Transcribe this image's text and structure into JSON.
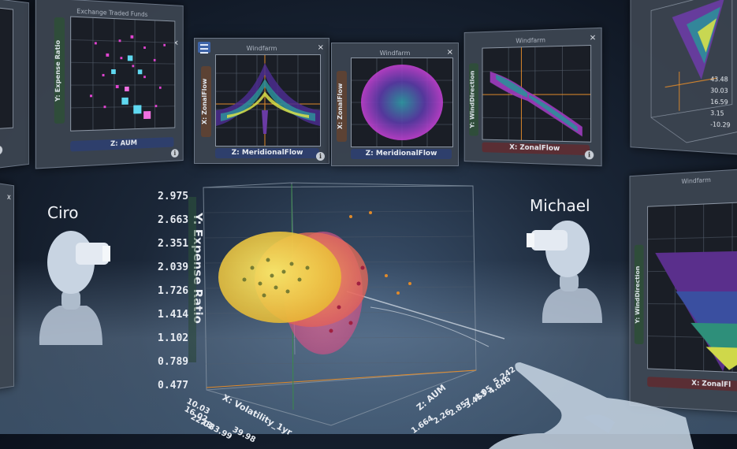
{
  "panels": [
    {
      "title": "",
      "close": "",
      "xlabel": "",
      "ylabel": "",
      "info": "i"
    },
    {
      "title": "Exchange Traded Funds",
      "close": "×",
      "xlabel": "Z: AUM",
      "ylabel": "Y: Expense Ratio",
      "info": "i"
    },
    {
      "title": "Windfarm",
      "close": "×",
      "xlabel": "Z: MeridionalFlow",
      "ylabel": "X: ZonalFlow",
      "info": "i"
    },
    {
      "title": "Windfarm",
      "close": "×",
      "xlabel": "Z: MeridionalFlow",
      "ylabel": "X: ZonalFlow",
      "info": "i"
    },
    {
      "title": "Windfarm",
      "close": "×",
      "xlabel": "X: ZonalFlow",
      "ylabel": "Y: WindDirection",
      "info": "i"
    },
    {
      "title": "Windfarm",
      "close": "",
      "xlabel": "X: ZonalFl",
      "ylabel": "Y: WindDirection",
      "info": ""
    },
    {
      "title": "",
      "close": "x",
      "xlabel": "",
      "ylabel": "",
      "info": ""
    }
  ],
  "corner_panel_ticks": [
    "43.48",
    "30.03",
    "16.59",
    "3.15",
    "-10.29"
  ],
  "avatars": {
    "left": "Ciro",
    "right": "Michael"
  },
  "main_plot": {
    "y_axis_label": "Y: Expense Ratio",
    "x_axis_label": "X: Volatility_1yr",
    "z_axis_label": "Z: AUM",
    "y_ticks": [
      "2.975",
      "2.663",
      "2.351",
      "2.039",
      "1.726",
      "1.414",
      "1.102",
      "0.789",
      "0.477"
    ],
    "x_ticks": [
      "10.03",
      "16.02",
      "22.01",
      "28",
      "33.99",
      "39.98"
    ],
    "z_ticks": [
      "5.242",
      "4.646",
      "4.05",
      "3.453",
      "2.857",
      "2.26",
      "1.664"
    ]
  }
}
